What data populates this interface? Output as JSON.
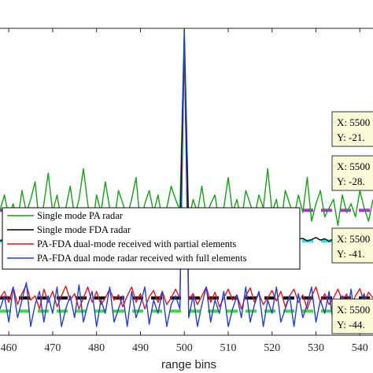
{
  "chart_data": {
    "type": "line",
    "title": "",
    "xlabel": "range bins",
    "ylabel": "",
    "xlim": [
      458,
      543
    ],
    "xticks": [
      460,
      470,
      480,
      490,
      500,
      510,
      520,
      530,
      540
    ],
    "ylim": [
      -50,
      20
    ],
    "grid": false,
    "legend_position": "center-left",
    "colors": {
      "green": "#1a9e1a",
      "black": "#000000",
      "red": "#e8141a",
      "blue": "#2040d8",
      "purple_dash": "#b030e0",
      "cyan_dash": "#30e0d8",
      "black_dash": "#000000",
      "green_dash": "#40d840"
    },
    "legend": [
      "Single mode PA radar",
      "Single mode FDA radar",
      "PA-FDA dual-mode received with partial elements",
      "PA-FDA dual mode radar received with full elements"
    ],
    "series": [
      {
        "name": "Single mode PA radar",
        "color": "#1a9e1a",
        "x": [
          458,
          459,
          460,
          461,
          462,
          463,
          464,
          465,
          466,
          467,
          468,
          469,
          470,
          471,
          472,
          473,
          474,
          475,
          476,
          477,
          478,
          479,
          480,
          481,
          482,
          483,
          484,
          485,
          486,
          487,
          488,
          489,
          490,
          491,
          492,
          493,
          494,
          495,
          496,
          497,
          498,
          499,
          500,
          501,
          502,
          503,
          504,
          505,
          506,
          507,
          508,
          509,
          510,
          511,
          512,
          513,
          514,
          515,
          516,
          517,
          518,
          519,
          520,
          521,
          522,
          523,
          524,
          525,
          526,
          527,
          528,
          529,
          530,
          531,
          532,
          533,
          534,
          535,
          536,
          537,
          538,
          539,
          540,
          541,
          542,
          543
        ],
        "y": [
          -21.5,
          -18,
          -23,
          -20,
          -24,
          -17,
          -22,
          -19,
          -15,
          -25,
          -20,
          -13,
          -22,
          -18,
          -24,
          -21,
          -16,
          -23,
          -19,
          -12,
          -20,
          -26,
          -18,
          -22,
          -15,
          -21,
          -24,
          -17,
          -20,
          -23,
          -19,
          -14,
          -25,
          -20,
          -17,
          -22,
          -18,
          -24,
          -21,
          -16,
          -19,
          -21.5,
          20,
          -24,
          -19,
          -22,
          -16,
          -23,
          -20,
          -18,
          -25,
          -21,
          -14,
          -22,
          -19,
          -24,
          -17,
          -20,
          -23,
          -18,
          -21,
          -12,
          -22,
          -19,
          -25,
          -17,
          -20,
          -23,
          -18,
          -22,
          -14,
          -24,
          -20,
          -17,
          -23,
          -21,
          -19,
          -25,
          -18,
          -22,
          -20,
          -23,
          -17,
          -21,
          -24,
          -19
        ]
      },
      {
        "name": "Single mode FDA radar",
        "color": "#000000",
        "x": [
          458,
          459,
          460,
          461,
          462,
          463,
          464,
          465,
          466,
          467,
          468,
          469,
          470,
          471,
          472,
          473,
          474,
          475,
          476,
          477,
          478,
          479,
          480,
          481,
          482,
          483,
          484,
          485,
          486,
          487,
          488,
          489,
          490,
          491,
          492,
          493,
          494,
          495,
          496,
          497,
          498,
          499,
          500,
          501,
          502,
          503,
          504,
          505,
          506,
          507,
          508,
          509,
          510,
          511,
          512,
          513,
          514,
          515,
          516,
          517,
          518,
          519,
          520,
          521,
          522,
          523,
          524,
          525,
          526,
          527,
          528,
          529,
          530,
          531,
          532,
          533,
          534,
          535,
          536,
          537,
          538,
          539,
          540,
          541,
          542,
          543
        ],
        "y": [
          -28.5,
          -28,
          -27.5,
          -28.2,
          -27,
          -28.4,
          -26.5,
          -28,
          -27.8,
          -28.5,
          -27.2,
          -28.3,
          -26.8,
          -28,
          -27.5,
          -28.6,
          -27.9,
          -28.2,
          -27.4,
          -28.7,
          -28,
          -27.6,
          -28.3,
          -27.9,
          -28.5,
          -27.7,
          -28.1,
          -28.4,
          -27.8,
          -28.2,
          -28.6,
          -27.9,
          -28.3,
          -28,
          -27.7,
          -28.5,
          -28.1,
          -27.9,
          -28.4,
          -28.2,
          -28,
          -28.5,
          18,
          -28.2,
          -28.6,
          -27.9,
          -28.3,
          -28,
          -28.4,
          -27.8,
          -28.5,
          -28.1,
          -27.9,
          -28.3,
          -28.6,
          -28,
          -27.7,
          -28.4,
          -28.2,
          -27.9,
          -28.5,
          -28.1,
          -27.8,
          -28.3,
          -28.6,
          -28,
          -27.6,
          -28.4,
          -28.1,
          -27.9,
          -28.5,
          -28.2,
          -27.7,
          -28.3,
          -28,
          -28.6,
          -27.9,
          -28.2,
          -28.4,
          -27.8,
          -28.1,
          -28.5,
          -28,
          -27.7,
          -28.3,
          -28
        ]
      },
      {
        "name": "PA-FDA dual-mode received with partial elements",
        "color": "#e8141a",
        "x": [
          458,
          459,
          460,
          461,
          462,
          463,
          464,
          465,
          466,
          467,
          468,
          469,
          470,
          471,
          472,
          473,
          474,
          475,
          476,
          477,
          478,
          479,
          480,
          481,
          482,
          483,
          484,
          485,
          486,
          487,
          488,
          489,
          490,
          491,
          492,
          493,
          494,
          495,
          496,
          497,
          498,
          499,
          500,
          501,
          502,
          503,
          504,
          505,
          506,
          507,
          508,
          509,
          510,
          511,
          512,
          513,
          514,
          515,
          516,
          517,
          518,
          519,
          520,
          521,
          522,
          523,
          524,
          525,
          526,
          527,
          528,
          529,
          530,
          531,
          532,
          533,
          534,
          535,
          536,
          537,
          538,
          539,
          540,
          541,
          542,
          543
        ],
        "y": [
          -41.5,
          -40,
          -42.5,
          -39,
          -43,
          -40.5,
          -38.5,
          -42,
          -41,
          -44,
          -39.5,
          -42.5,
          -40,
          -43.5,
          -41,
          -38.8,
          -42,
          -40.5,
          -44,
          -41.5,
          -39,
          -42.5,
          -40,
          -43,
          -41.5,
          -39.5,
          -42,
          -40.8,
          -43.5,
          -41,
          -39,
          -42.5,
          -40.5,
          -44,
          -41.2,
          -39.8,
          -42.5,
          -40,
          -43,
          -41.5,
          -39.5,
          -41.5,
          16,
          -42,
          -40.5,
          -43,
          -41,
          -39,
          -42.5,
          -40.2,
          -43.5,
          -41.5,
          -39.5,
          -42,
          -40.8,
          -44,
          -41,
          -39.2,
          -42.5,
          -40.5,
          -43,
          -41.5,
          -39.8,
          -42.2,
          -40,
          -43.5,
          -41,
          -39.5,
          -42.5,
          -40.8,
          -44,
          -41.2,
          -39,
          -42.5,
          -40.5,
          -43,
          -41.5,
          -39.5,
          -42,
          -40.6,
          -43.5,
          -41,
          -39.4,
          -42.4,
          -40.2,
          -41.5
        ]
      },
      {
        "name": "PA-FDA dual mode radar received with full elements",
        "color": "#2040d8",
        "x": [
          458,
          459,
          460,
          461,
          462,
          463,
          464,
          465,
          466,
          467,
          468,
          469,
          470,
          471,
          472,
          473,
          474,
          475,
          476,
          477,
          478,
          479,
          480,
          481,
          482,
          483,
          484,
          485,
          486,
          487,
          488,
          489,
          490,
          491,
          492,
          493,
          494,
          495,
          496,
          497,
          498,
          499,
          500,
          501,
          502,
          503,
          504,
          505,
          506,
          507,
          508,
          509,
          510,
          511,
          512,
          513,
          514,
          515,
          516,
          517,
          518,
          519,
          520,
          521,
          522,
          523,
          524,
          525,
          526,
          527,
          528,
          529,
          530,
          531,
          532,
          533,
          534,
          535,
          536,
          537,
          538,
          539,
          540,
          541,
          542,
          543
        ],
        "y": [
          -44,
          -41,
          -47,
          -39,
          -46,
          -42,
          -38,
          -48,
          -43,
          -40,
          -47,
          -41,
          -45,
          -39,
          -48,
          -44,
          -41,
          -46,
          -38.5,
          -47,
          -43,
          -40,
          -48,
          -42,
          -45,
          -39,
          -47,
          -44,
          -41,
          -48,
          -40,
          -46,
          -43,
          -39,
          -47.5,
          -42,
          -45,
          -40,
          -48,
          -43,
          -41,
          -44,
          19,
          -46,
          -41,
          -48,
          -43,
          -39,
          -47,
          -42,
          -45,
          -40,
          -48,
          -44,
          -41,
          -46,
          -39,
          -47,
          -43,
          -40,
          -48,
          -42,
          -45,
          -39,
          -47,
          -44,
          -41,
          -48,
          -40.5,
          -46,
          -43,
          -39,
          -47,
          -42,
          -45,
          -40,
          -48,
          -44,
          -41,
          -46,
          -39.5,
          -47,
          -43,
          -40.5,
          -47.5,
          -44
        ]
      }
    ],
    "reference_lines": [
      {
        "y": -21.5,
        "color": "#b030e0"
      },
      {
        "y": -28.5,
        "color": "#30e0d8"
      },
      {
        "y": -41.5,
        "color": "#000000"
      },
      {
        "y": -44.5,
        "color": "#40d840"
      }
    ],
    "datatips": [
      {
        "line1": "X: 5500",
        "line2": "Y: -21."
      },
      {
        "line1": "X: 5500",
        "line2": "Y: -28."
      },
      {
        "line1": "X: 5500",
        "line2": "Y: -41."
      },
      {
        "line1": "X: 5500",
        "line2": "Y: -44."
      }
    ]
  }
}
